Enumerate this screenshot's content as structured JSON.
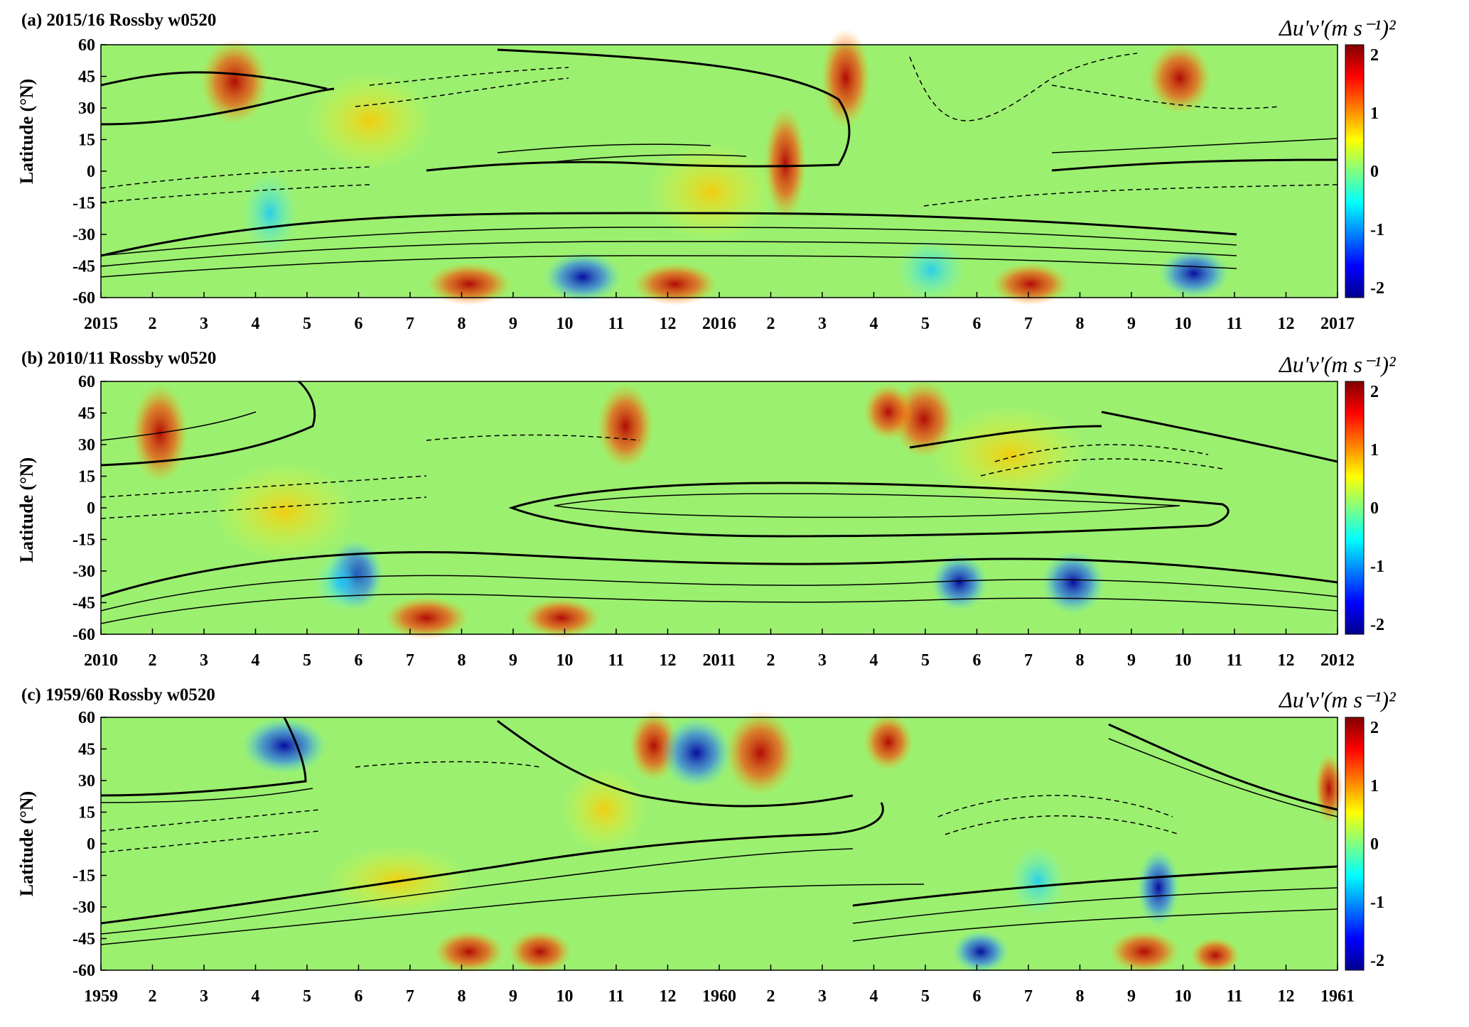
{
  "chart_data": [
    {
      "type": "heatmap",
      "panel_label": "(a) 2015/16 Rossby w0520",
      "ylabel": "Latitude (°N)",
      "ylim": [
        -60,
        60
      ],
      "yticks": [
        "60",
        "45",
        "30",
        "15",
        "0",
        "-15",
        "-30",
        "-45",
        "-60"
      ],
      "xticks": [
        "2015",
        "2",
        "3",
        "4",
        "5",
        "6",
        "7",
        "8",
        "9",
        "10",
        "11",
        "12",
        "2016",
        "2",
        "3",
        "4",
        "5",
        "6",
        "7",
        "8",
        "9",
        "10",
        "11",
        "12",
        "2017"
      ],
      "colorbar": {
        "label": "Δu'v'(m s⁻¹)²",
        "ticks": [
          "2",
          "1",
          "0",
          "-1",
          "-2"
        ],
        "range": [
          -2,
          2
        ],
        "colormap": "jet"
      },
      "contours": "solid = positive, dashed = negative, thick = zero line"
    },
    {
      "type": "heatmap",
      "panel_label": "(b) 2010/11 Rossby w0520",
      "ylabel": "Latitude (°N)",
      "ylim": [
        -60,
        60
      ],
      "yticks": [
        "60",
        "45",
        "30",
        "15",
        "0",
        "-15",
        "-30",
        "-45",
        "-60"
      ],
      "xticks": [
        "2010",
        "2",
        "3",
        "4",
        "5",
        "6",
        "7",
        "8",
        "9",
        "10",
        "11",
        "12",
        "2011",
        "2",
        "3",
        "4",
        "5",
        "6",
        "7",
        "8",
        "9",
        "10",
        "11",
        "12",
        "2012"
      ],
      "colorbar": {
        "label": "Δu'v'(m s⁻¹)²",
        "ticks": [
          "2",
          "1",
          "0",
          "-1",
          "-2"
        ],
        "range": [
          -2,
          2
        ],
        "colormap": "jet"
      },
      "contours": "solid = positive, dashed = negative, thick = zero line"
    },
    {
      "type": "heatmap",
      "panel_label": "(c) 1959/60 Rossby w0520",
      "ylabel": "Latitude (°N)",
      "ylim": [
        -60,
        60
      ],
      "yticks": [
        "60",
        "45",
        "30",
        "15",
        "0",
        "-15",
        "-30",
        "-45",
        "-60"
      ],
      "xticks": [
        "1959",
        "2",
        "3",
        "4",
        "5",
        "6",
        "7",
        "8",
        "9",
        "10",
        "11",
        "12",
        "1960",
        "2",
        "3",
        "4",
        "5",
        "6",
        "7",
        "8",
        "9",
        "10",
        "11",
        "12",
        "1961"
      ],
      "colorbar": {
        "label": "Δu'v'(m s⁻¹)²",
        "ticks": [
          "2",
          "1",
          "0",
          "-1",
          "-2"
        ],
        "range": [
          -2,
          2
        ],
        "colormap": "jet"
      },
      "contours": "solid = positive, dashed = negative, thick = zero line"
    }
  ]
}
